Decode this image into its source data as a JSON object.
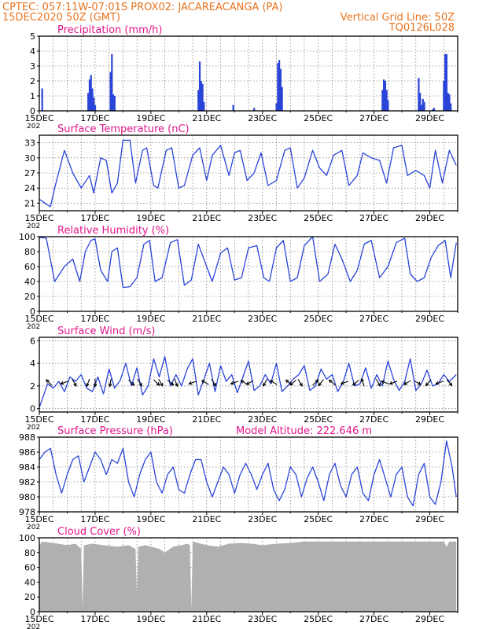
{
  "header": {
    "line1_left": "CPTEC:   057:11W-07:01S   PROX02: JACAREACANGA (PA)",
    "line2_left": "15DEC2020  50Z (GMT)",
    "line2_right": "Vertical Grid Line: 50Z",
    "line3_right": "TQ0126L028"
  },
  "colors": {
    "header": "#e8731e",
    "panel_title": "#e0178a",
    "series": "#2a44d8",
    "cloud_fill": "#b0b0b0",
    "wind_arrow": "#000000"
  },
  "x_axis": {
    "labels": [
      "15DEC",
      "17DEC",
      "19DEC",
      "21DEC",
      "23DEC",
      "25DEC",
      "27DEC",
      "29DEC"
    ],
    "label_below": "202"
  },
  "chart_data": [
    {
      "id": "precip",
      "type": "bar",
      "title": "Precipitation  (mm/h)",
      "ylim": [
        0,
        5
      ],
      "yticks": [
        0,
        1,
        2,
        3,
        4,
        5
      ],
      "grid": true,
      "x_unit": "days since 15DEC2020 00Z",
      "x": [
        0.1,
        1.75,
        1.8,
        1.85,
        1.9,
        1.95,
        2.0,
        2.55,
        2.6,
        2.65,
        2.7,
        5.7,
        5.75,
        5.8,
        5.85,
        5.9,
        6.95,
        7.7,
        8.5,
        8.55,
        8.6,
        8.65,
        8.7,
        12.3,
        12.35,
        12.4,
        12.45,
        12.5,
        13.6,
        13.65,
        13.7,
        13.75,
        13.8,
        14.1,
        14.15,
        14.5,
        14.55,
        14.6,
        14.65,
        14.7,
        14.75
      ],
      "values": [
        1.5,
        1.2,
        2.1,
        2.4,
        1.5,
        0.9,
        0.4,
        2.6,
        3.8,
        1.1,
        1.0,
        1.4,
        3.3,
        2.0,
        1.8,
        0.6,
        0.4,
        0.2,
        0.5,
        3.2,
        3.4,
        2.8,
        1.6,
        1.4,
        2.1,
        2.0,
        1.4,
        0.7,
        2.2,
        1.2,
        0.4,
        0.8,
        0.6,
        0.1,
        0.2,
        2.0,
        3.8,
        3.8,
        1.2,
        1.1,
        0.5
      ]
    },
    {
      "id": "temp",
      "type": "line",
      "title": "Surface Temperature  (nC)",
      "ylim": [
        19.5,
        34.5
      ],
      "yticks": [
        21,
        24,
        27,
        30,
        33
      ],
      "grid": true,
      "x_unit": "days since 15DEC2020 00Z",
      "x": [
        0,
        0.25,
        0.4,
        0.55,
        0.9,
        1.2,
        1.5,
        1.8,
        1.95,
        2.2,
        2.4,
        2.6,
        2.8,
        3.0,
        3.25,
        3.45,
        3.7,
        3.85,
        4.1,
        4.25,
        4.55,
        4.75,
        5.0,
        5.2,
        5.5,
        5.75,
        6.0,
        6.2,
        6.5,
        6.8,
        7.0,
        7.2,
        7.45,
        7.7,
        7.95,
        8.2,
        8.5,
        8.8,
        9.0,
        9.25,
        9.5,
        9.8,
        10.05,
        10.3,
        10.55,
        10.85,
        11.1,
        11.4,
        11.6,
        11.9,
        12.2,
        12.45,
        12.7,
        13.0,
        13.2,
        13.5,
        13.8,
        14.0,
        14.2,
        14.45,
        14.7,
        14.95
      ],
      "values": [
        21.8,
        20.8,
        20.3,
        24.0,
        31.5,
        27.0,
        24.0,
        26.5,
        23.0,
        30.0,
        29.5,
        23.0,
        25.0,
        33.5,
        33.5,
        25.0,
        31.5,
        32.0,
        24.5,
        24.0,
        31.5,
        32.0,
        24.0,
        24.5,
        30.5,
        32.0,
        25.5,
        30.5,
        32.5,
        26.5,
        31.0,
        31.5,
        25.5,
        27.0,
        31.0,
        24.5,
        25.5,
        31.5,
        32.0,
        24.0,
        26.0,
        31.5,
        28.0,
        26.5,
        30.5,
        31.5,
        24.5,
        26.5,
        31.0,
        30.0,
        29.5,
        25.0,
        32.0,
        32.5,
        26.5,
        27.5,
        26.5,
        24.0,
        31.5,
        25.0,
        31.5,
        28.5
      ]
    },
    {
      "id": "rh",
      "type": "line",
      "title": "Relative Humidity  (%)",
      "ylim": [
        0,
        100
      ],
      "yticks": [
        0,
        20,
        40,
        60,
        80,
        100
      ],
      "grid": true,
      "x_unit": "days since 15DEC2020 00Z",
      "x": [
        0,
        0.25,
        0.55,
        0.9,
        1.2,
        1.45,
        1.65,
        1.85,
        2.0,
        2.2,
        2.45,
        2.6,
        2.8,
        3.0,
        3.25,
        3.5,
        3.75,
        3.95,
        4.15,
        4.4,
        4.7,
        4.95,
        5.2,
        5.45,
        5.7,
        6.0,
        6.2,
        6.5,
        6.75,
        7.0,
        7.25,
        7.5,
        7.8,
        8.05,
        8.25,
        8.5,
        8.75,
        9.0,
        9.25,
        9.5,
        9.8,
        10.05,
        10.35,
        10.6,
        10.85,
        11.15,
        11.4,
        11.65,
        11.9,
        12.2,
        12.5,
        12.8,
        13.1,
        13.3,
        13.55,
        13.8,
        14.05,
        14.3,
        14.55,
        14.75,
        14.95
      ],
      "values": [
        99,
        98,
        40,
        60,
        70,
        40,
        80,
        95,
        97,
        55,
        40,
        80,
        85,
        32,
        33,
        45,
        90,
        95,
        40,
        45,
        92,
        96,
        35,
        42,
        90,
        60,
        40,
        78,
        85,
        42,
        45,
        85,
        88,
        45,
        40,
        85,
        95,
        40,
        45,
        88,
        100,
        40,
        50,
        90,
        70,
        40,
        55,
        90,
        95,
        45,
        60,
        92,
        98,
        50,
        40,
        45,
        72,
        88,
        95,
        45,
        92
      ]
    },
    {
      "id": "wind",
      "type": "line",
      "title": "Surface Wind  (m/s)",
      "ylim": [
        -0.3,
        6.3
      ],
      "yticks": [
        0,
        2,
        4,
        6
      ],
      "grid": true,
      "x_unit": "days since 15DEC2020 00Z",
      "x": [
        0,
        0.1,
        0.3,
        0.5,
        0.7,
        0.9,
        1.1,
        1.3,
        1.5,
        1.7,
        1.9,
        2.1,
        2.3,
        2.5,
        2.7,
        2.9,
        3.1,
        3.3,
        3.5,
        3.7,
        3.9,
        4.1,
        4.3,
        4.5,
        4.7,
        4.9,
        5.1,
        5.3,
        5.5,
        5.7,
        5.9,
        6.1,
        6.3,
        6.5,
        6.7,
        6.9,
        7.1,
        7.3,
        7.5,
        7.7,
        7.9,
        8.1,
        8.3,
        8.5,
        8.7,
        8.9,
        9.1,
        9.3,
        9.5,
        9.7,
        9.9,
        10.1,
        10.3,
        10.5,
        10.7,
        10.9,
        11.1,
        11.3,
        11.5,
        11.7,
        11.9,
        12.1,
        12.3,
        12.5,
        12.7,
        12.9,
        13.1,
        13.3,
        13.5,
        13.7,
        13.9,
        14.1,
        14.3,
        14.5,
        14.7,
        14.95
      ],
      "values": [
        0.1,
        0.8,
        2.2,
        1.8,
        2.4,
        1.5,
        2.8,
        2.4,
        3.0,
        1.8,
        1.5,
        2.8,
        1.3,
        3.5,
        1.8,
        2.5,
        4.0,
        2.0,
        3.6,
        1.2,
        2.0,
        4.4,
        2.8,
        4.6,
        2.0,
        3.0,
        2.0,
        3.5,
        4.4,
        1.2,
        2.6,
        4.0,
        1.5,
        3.8,
        2.4,
        3.0,
        1.4,
        2.8,
        4.2,
        1.6,
        2.0,
        3.0,
        2.2,
        4.0,
        1.5,
        2.0,
        2.6,
        3.0,
        3.8,
        1.6,
        2.0,
        3.5,
        2.6,
        3.0,
        1.5,
        2.4,
        4.0,
        2.0,
        2.2,
        3.6,
        1.8,
        3.0,
        2.0,
        4.2,
        2.6,
        1.6,
        2.4,
        4.4,
        1.6,
        2.2,
        3.4,
        2.0,
        2.2,
        3.0,
        2.4,
        3.0
      ],
      "arrows": {
        "x": [
          0.35,
          0.9,
          1.25,
          1.75,
          2.0,
          2.55,
          3.3,
          3.6,
          4.2,
          4.35,
          4.7,
          4.9,
          5.5,
          5.95,
          6.25,
          7.0,
          7.35,
          7.55,
          8.1,
          8.4,
          8.95,
          9.1,
          9.35,
          9.9,
          10.1,
          10.5,
          10.95,
          11.35,
          11.6,
          12.15,
          12.4,
          12.7,
          13.2,
          13.55,
          13.95,
          14.35,
          14.7
        ],
        "dir_deg": [
          135,
          200,
          300,
          250,
          270,
          260,
          315,
          300,
          315,
          300,
          320,
          290,
          200,
          150,
          300,
          200,
          150,
          210,
          240,
          150,
          140,
          220,
          300,
          45,
          230,
          140,
          200,
          220,
          110,
          300,
          160,
          200,
          210,
          330,
          230,
          200,
          310
        ]
      }
    },
    {
      "id": "pressure",
      "type": "line",
      "title": "Surface Pressure  (hPa)",
      "annotation": "Model Altitude: 222.646  m",
      "ylim": [
        978,
        988
      ],
      "yticks": [
        978,
        980,
        982,
        984,
        986,
        988
      ],
      "grid": true,
      "x_unit": "days since 15DEC2020 00Z",
      "x": [
        0,
        0.2,
        0.4,
        0.6,
        0.8,
        1.0,
        1.2,
        1.4,
        1.6,
        1.8,
        2.0,
        2.2,
        2.4,
        2.6,
        2.8,
        3.0,
        3.2,
        3.4,
        3.6,
        3.8,
        4.0,
        4.2,
        4.4,
        4.6,
        4.8,
        5.0,
        5.2,
        5.4,
        5.6,
        5.8,
        6.0,
        6.2,
        6.4,
        6.6,
        6.8,
        7.0,
        7.2,
        7.4,
        7.6,
        7.8,
        8.0,
        8.2,
        8.4,
        8.6,
        8.8,
        9.0,
        9.2,
        9.4,
        9.6,
        9.8,
        10.0,
        10.2,
        10.4,
        10.6,
        10.8,
        11.0,
        11.2,
        11.4,
        11.6,
        11.8,
        12.0,
        12.2,
        12.4,
        12.6,
        12.8,
        13.0,
        13.2,
        13.4,
        13.6,
        13.8,
        14.0,
        14.2,
        14.4,
        14.6,
        14.8,
        14.95
      ],
      "values": [
        985.0,
        986.0,
        986.5,
        983.0,
        980.5,
        983.0,
        985.0,
        985.5,
        982.0,
        984.0,
        986.0,
        985.0,
        983.0,
        985.0,
        984.5,
        986.5,
        982.0,
        980.0,
        983.0,
        985.0,
        986.0,
        982.0,
        980.5,
        983.0,
        984.0,
        981.0,
        980.5,
        983.0,
        985.0,
        985.0,
        982.0,
        980.0,
        982.0,
        984.0,
        983.0,
        980.5,
        983.0,
        984.5,
        983.0,
        981.0,
        983.0,
        984.5,
        981.0,
        979.5,
        981.0,
        984.0,
        983.0,
        980.0,
        982.5,
        984.0,
        982.0,
        979.5,
        983.0,
        984.5,
        981.5,
        980.0,
        983.0,
        984.0,
        980.5,
        979.5,
        983.0,
        985.0,
        982.5,
        980.0,
        983.0,
        984.0,
        980.0,
        978.8,
        983.0,
        984.5,
        980.0,
        979.0,
        982.0,
        987.5,
        984.0,
        980.0
      ]
    },
    {
      "id": "cloud",
      "type": "area",
      "title": "Cloud Cover  (%)",
      "ylim": [
        0,
        100
      ],
      "yticks": [
        0,
        20,
        40,
        60,
        80,
        100
      ],
      "grid": true,
      "x_unit": "days since 15DEC2020 00Z",
      "x": [
        0,
        0.1,
        0.5,
        1.0,
        1.3,
        1.5,
        1.55,
        1.6,
        1.9,
        2.3,
        2.8,
        3.2,
        3.45,
        3.5,
        3.55,
        3.8,
        4.3,
        4.5,
        4.8,
        5.1,
        5.3,
        5.4,
        5.45,
        5.5,
        5.7,
        6.0,
        6.4,
        6.8,
        7.2,
        7.6,
        8.0,
        8.5,
        9.0,
        9.5,
        10.0,
        10.5,
        11.0,
        11.5,
        12.0,
        12.5,
        13.0,
        13.5,
        14.0,
        14.5,
        14.6,
        14.7,
        14.95
      ],
      "values": [
        90,
        95,
        93,
        90,
        92,
        85,
        5,
        90,
        92,
        90,
        88,
        90,
        85,
        20,
        88,
        90,
        85,
        80,
        88,
        90,
        92,
        90,
        2,
        95,
        93,
        90,
        88,
        92,
        93,
        92,
        90,
        92,
        93,
        95,
        95,
        95,
        95,
        95,
        95,
        95,
        95,
        95,
        95,
        95,
        88,
        95,
        95
      ]
    }
  ]
}
